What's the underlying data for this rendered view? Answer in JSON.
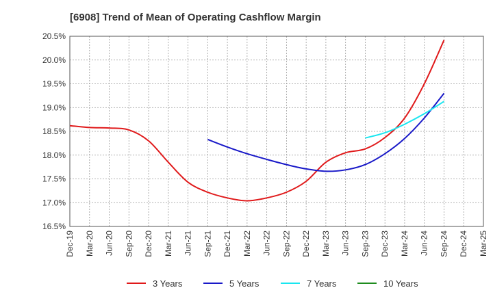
{
  "chart_data": {
    "type": "line",
    "title": "[6908]  Trend of Mean of Operating Cashflow Margin",
    "xlabel": "",
    "ylabel": "",
    "x": [
      "Dec-19",
      "Mar-20",
      "Jun-20",
      "Sep-20",
      "Dec-20",
      "Mar-21",
      "Jun-21",
      "Sep-21",
      "Dec-21",
      "Mar-22",
      "Jun-22",
      "Sep-22",
      "Dec-22",
      "Mar-23",
      "Jun-23",
      "Sep-23",
      "Dec-23",
      "Mar-24",
      "Jun-24",
      "Sep-24",
      "Dec-24",
      "Mar-25"
    ],
    "ylim": [
      16.5,
      20.5
    ],
    "yticks": [
      16.5,
      17.0,
      17.5,
      18.0,
      18.5,
      19.0,
      19.5,
      20.0,
      20.5
    ],
    "ytick_labels": [
      "16.5%",
      "17.0%",
      "17.5%",
      "18.0%",
      "18.5%",
      "19.0%",
      "19.5%",
      "20.0%",
      "20.5%"
    ],
    "grid": true,
    "legend_position": "bottom",
    "series": [
      {
        "name": "3 Years",
        "color": "#e0191a",
        "values": [
          18.62,
          18.58,
          18.57,
          18.53,
          18.3,
          17.85,
          17.43,
          17.22,
          17.1,
          17.04,
          17.1,
          17.22,
          17.45,
          17.85,
          18.05,
          18.13,
          18.37,
          18.78,
          19.5,
          20.42,
          null,
          null
        ]
      },
      {
        "name": "5 Years",
        "color": "#1919c8",
        "values": [
          null,
          null,
          null,
          null,
          null,
          null,
          null,
          18.33,
          18.17,
          18.03,
          17.91,
          17.8,
          17.71,
          17.66,
          17.69,
          17.8,
          18.03,
          18.35,
          18.78,
          19.3,
          null,
          null
        ]
      },
      {
        "name": "7 Years",
        "color": "#19e6f0",
        "values": [
          null,
          null,
          null,
          null,
          null,
          null,
          null,
          null,
          null,
          null,
          null,
          null,
          null,
          null,
          null,
          18.36,
          18.47,
          18.65,
          18.87,
          19.13,
          null,
          null
        ]
      },
      {
        "name": "10 Years",
        "color": "#1e8c1e",
        "values": [
          null,
          null,
          null,
          null,
          null,
          null,
          null,
          null,
          null,
          null,
          null,
          null,
          null,
          null,
          null,
          null,
          null,
          null,
          null,
          null,
          null,
          null
        ]
      }
    ]
  }
}
